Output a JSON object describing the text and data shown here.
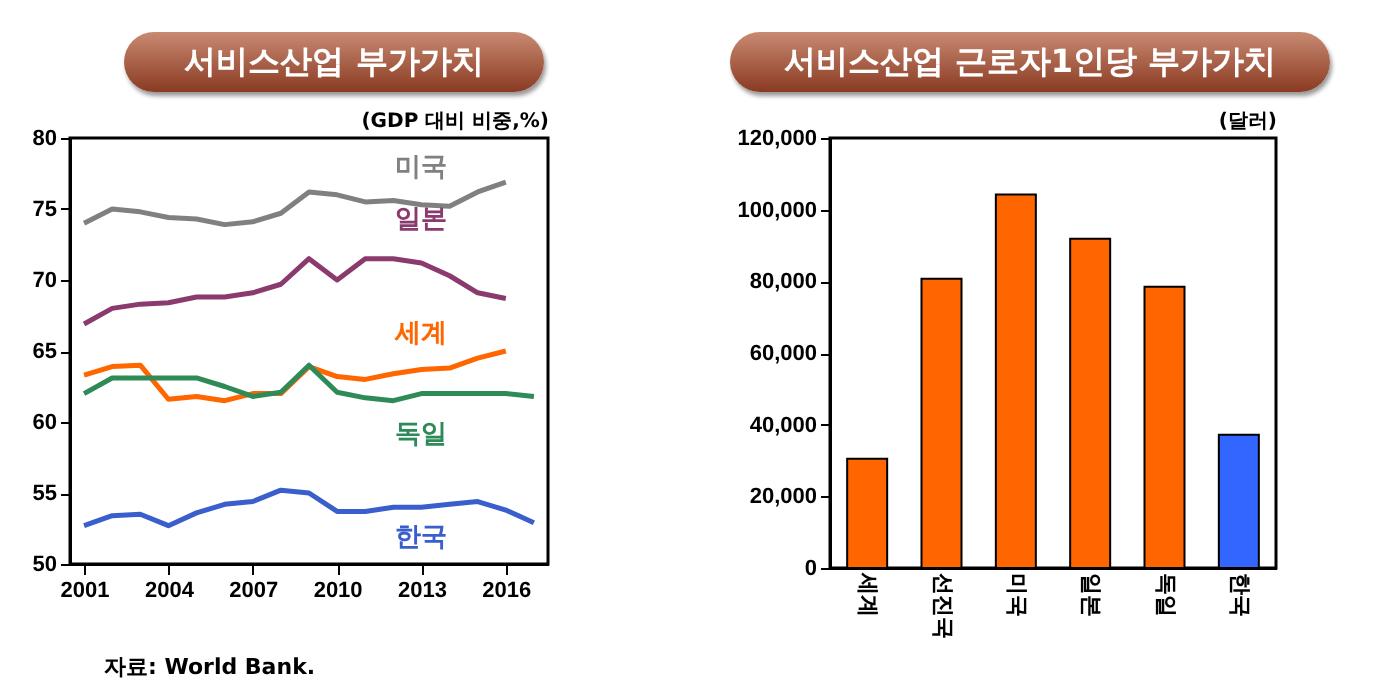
{
  "chart_data": [
    {
      "type": "line",
      "title": "서비스산업 부가가치",
      "ylabel": "(GDP 대비 비중,%)",
      "x": [
        2001,
        2002,
        2003,
        2004,
        2005,
        2006,
        2007,
        2008,
        2009,
        2010,
        2011,
        2012,
        2013,
        2014,
        2015,
        2016,
        2017
      ],
      "series": [
        {
          "name": "미국",
          "color": "#808080",
          "values": [
            74.0,
            75.0,
            74.8,
            74.4,
            74.3,
            73.9,
            74.1,
            74.7,
            76.2,
            76.0,
            75.5,
            75.6,
            75.3,
            75.2,
            76.2,
            76.9,
            null
          ]
        },
        {
          "name": "일본",
          "color": "#8b3a6e",
          "values": [
            66.9,
            68.0,
            68.3,
            68.4,
            68.8,
            68.8,
            69.1,
            69.7,
            71.5,
            70.0,
            71.5,
            71.5,
            71.2,
            70.3,
            69.1,
            68.7,
            null
          ]
        },
        {
          "name": "세계",
          "color": "#ff6600",
          "values": [
            63.3,
            63.9,
            64.0,
            61.6,
            61.8,
            61.5,
            62.0,
            62.0,
            63.9,
            63.2,
            63.0,
            63.4,
            63.7,
            63.8,
            64.5,
            65.0,
            null
          ]
        },
        {
          "name": "독일",
          "color": "#2e8b57",
          "values": [
            62.0,
            63.1,
            63.1,
            63.1,
            63.1,
            62.5,
            61.8,
            62.1,
            64.0,
            62.1,
            61.7,
            61.5,
            62.0,
            62.0,
            62.0,
            62.0,
            61.8
          ]
        },
        {
          "name": "한국",
          "color": "#3a5fcd",
          "values": [
            52.7,
            53.4,
            53.5,
            52.7,
            53.6,
            54.2,
            54.4,
            55.2,
            55.0,
            53.7,
            53.7,
            54.0,
            54.0,
            54.2,
            54.4,
            53.8,
            52.9
          ]
        }
      ],
      "xlim": [
        2000.5,
        2017.5
      ],
      "xticks": [
        2001,
        2004,
        2007,
        2010,
        2013,
        2016
      ],
      "ylim": [
        50,
        80
      ],
      "yticks": [
        50,
        55,
        60,
        65,
        70,
        75,
        80
      ],
      "grid": false,
      "legend": false,
      "marker": "none",
      "line_style": "solid",
      "annotations": [
        "자료: World Bank."
      ]
    },
    {
      "type": "bar",
      "title": "서비스산업 근로자1인당 부가가치",
      "ylabel": "(달러)",
      "categories": [
        "세계",
        "선진국",
        "미국",
        "일본",
        "독일",
        "한국"
      ],
      "values": [
        30500,
        80700,
        104200,
        91900,
        78500,
        37200
      ],
      "colors": [
        "#ff6600",
        "#ff6600",
        "#ff6600",
        "#ff6600",
        "#ff6600",
        "#3366ff"
      ],
      "ylim": [
        0,
        120000
      ],
      "yticks": [
        {
          "value": 0,
          "label": "0"
        },
        {
          "value": 20000,
          "label": "20,000"
        },
        {
          "value": 40000,
          "label": "40,000"
        },
        {
          "value": 60000,
          "label": "60,000"
        },
        {
          "value": 80000,
          "label": "80,000"
        },
        {
          "value": 100000,
          "label": "100,000"
        },
        {
          "value": 120000,
          "label": "120,000"
        }
      ],
      "grid": false
    }
  ]
}
